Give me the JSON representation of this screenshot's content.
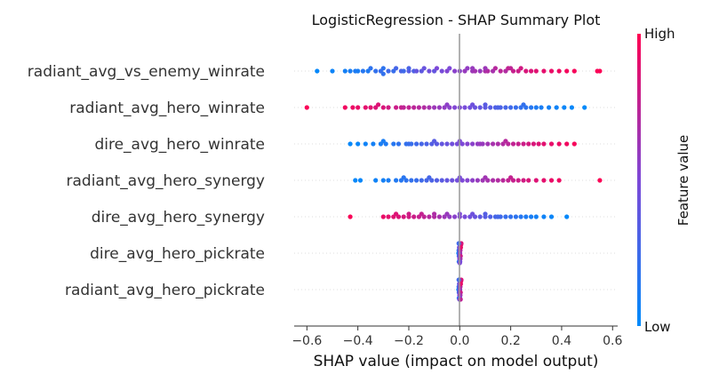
{
  "chart_data": {
    "type": "scatter",
    "title": "LogisticRegression - SHAP Summary Plot",
    "xlabel": "SHAP value (impact on model output)",
    "xlim": [
      -0.65,
      0.62
    ],
    "xticks": [
      "−0.6",
      "−0.4",
      "−0.2",
      "0.0",
      "0.2",
      "0.4",
      "0.6"
    ],
    "xtick_values": [
      -0.6,
      -0.4,
      -0.2,
      0.0,
      0.2,
      0.4,
      0.6
    ],
    "colorbar": {
      "label": "Feature value",
      "high": "High",
      "low": "Low",
      "low_color": "#008bfb",
      "high_color": "#ff0052"
    },
    "features": [
      {
        "name": "radiant_avg_vs_enemy_winrate",
        "points": [
          [
            -0.56,
            0.02
          ],
          [
            -0.5,
            0.05
          ],
          [
            -0.45,
            0.08
          ],
          [
            -0.43,
            0.1
          ],
          [
            -0.41,
            0.12
          ],
          [
            -0.4,
            0.1
          ],
          [
            -0.38,
            0.15
          ],
          [
            -0.36,
            0.12
          ],
          [
            -0.35,
            0.18
          ],
          [
            -0.33,
            0.2
          ],
          [
            -0.31,
            0.22
          ],
          [
            -0.3,
            0.18
          ],
          [
            -0.28,
            0.25
          ],
          [
            -0.26,
            0.22
          ],
          [
            -0.25,
            0.28
          ],
          [
            -0.23,
            0.3
          ],
          [
            -0.22,
            0.25
          ],
          [
            -0.2,
            0.35
          ],
          [
            -0.18,
            0.32
          ],
          [
            -0.17,
            0.4
          ],
          [
            -0.15,
            0.38
          ],
          [
            -0.14,
            0.42
          ],
          [
            -0.12,
            0.45
          ],
          [
            -0.1,
            0.4
          ],
          [
            -0.09,
            0.5
          ],
          [
            -0.07,
            0.48
          ],
          [
            -0.05,
            0.52
          ],
          [
            -0.04,
            0.5
          ],
          [
            -0.02,
            0.55
          ],
          [
            0.0,
            0.55
          ],
          [
            0.02,
            0.6
          ],
          [
            0.03,
            0.58
          ],
          [
            0.05,
            0.62
          ],
          [
            0.06,
            0.65
          ],
          [
            0.08,
            0.6
          ],
          [
            0.1,
            0.68
          ],
          [
            0.11,
            0.7
          ],
          [
            0.13,
            0.66
          ],
          [
            0.14,
            0.72
          ],
          [
            0.16,
            0.74
          ],
          [
            0.18,
            0.7
          ],
          [
            0.19,
            0.76
          ],
          [
            0.21,
            0.78
          ],
          [
            0.23,
            0.8
          ],
          [
            0.24,
            0.82
          ],
          [
            0.26,
            0.85
          ],
          [
            0.28,
            0.86
          ],
          [
            0.3,
            0.88
          ],
          [
            0.33,
            0.9
          ],
          [
            0.36,
            0.92
          ],
          [
            0.39,
            0.94
          ],
          [
            0.42,
            0.96
          ],
          [
            0.45,
            0.97
          ],
          [
            0.55,
            0.99
          ],
          [
            0.54,
            0.98
          ],
          [
            0.1,
            0.62
          ],
          [
            0.05,
            0.6
          ],
          [
            -0.2,
            0.3
          ],
          [
            -0.3,
            0.2
          ],
          [
            0.2,
            0.75
          ]
        ]
      },
      {
        "name": "radiant_avg_hero_winrate",
        "points": [
          [
            -0.6,
            0.98
          ],
          [
            -0.45,
            0.95
          ],
          [
            -0.42,
            0.93
          ],
          [
            -0.4,
            0.92
          ],
          [
            -0.37,
            0.9
          ],
          [
            -0.35,
            0.88
          ],
          [
            -0.33,
            0.86
          ],
          [
            -0.3,
            0.85
          ],
          [
            -0.28,
            0.82
          ],
          [
            -0.25,
            0.8
          ],
          [
            -0.23,
            0.78
          ],
          [
            -0.2,
            0.76
          ],
          [
            -0.18,
            0.74
          ],
          [
            -0.16,
            0.72
          ],
          [
            -0.14,
            0.7
          ],
          [
            -0.12,
            0.66
          ],
          [
            -0.1,
            0.62
          ],
          [
            -0.08,
            0.6
          ],
          [
            -0.06,
            0.58
          ],
          [
            -0.04,
            0.55
          ],
          [
            -0.02,
            0.52
          ],
          [
            0.0,
            0.5
          ],
          [
            0.02,
            0.48
          ],
          [
            0.04,
            0.45
          ],
          [
            0.06,
            0.42
          ],
          [
            0.08,
            0.4
          ],
          [
            0.1,
            0.38
          ],
          [
            0.12,
            0.35
          ],
          [
            0.14,
            0.32
          ],
          [
            0.16,
            0.3
          ],
          [
            0.18,
            0.28
          ],
          [
            0.2,
            0.25
          ],
          [
            0.22,
            0.22
          ],
          [
            0.24,
            0.2
          ],
          [
            0.26,
            0.18
          ],
          [
            0.28,
            0.15
          ],
          [
            0.3,
            0.12
          ],
          [
            0.32,
            0.1
          ],
          [
            0.35,
            0.08
          ],
          [
            0.38,
            0.06
          ],
          [
            0.41,
            0.04
          ],
          [
            0.44,
            0.03
          ],
          [
            0.49,
            0.01
          ],
          [
            -0.22,
            0.75
          ],
          [
            -0.05,
            0.56
          ],
          [
            0.05,
            0.44
          ],
          [
            0.15,
            0.3
          ],
          [
            -0.32,
            0.87
          ],
          [
            0.25,
            0.2
          ],
          [
            0.1,
            0.36
          ]
        ]
      },
      {
        "name": "dire_avg_hero_winrate",
        "points": [
          [
            -0.43,
            0.02
          ],
          [
            -0.4,
            0.04
          ],
          [
            -0.37,
            0.06
          ],
          [
            -0.34,
            0.08
          ],
          [
            -0.31,
            0.1
          ],
          [
            -0.29,
            0.12
          ],
          [
            -0.26,
            0.15
          ],
          [
            -0.24,
            0.18
          ],
          [
            -0.21,
            0.2
          ],
          [
            -0.19,
            0.22
          ],
          [
            -0.17,
            0.25
          ],
          [
            -0.15,
            0.28
          ],
          [
            -0.13,
            0.3
          ],
          [
            -0.11,
            0.33
          ],
          [
            -0.09,
            0.36
          ],
          [
            -0.07,
            0.4
          ],
          [
            -0.05,
            0.42
          ],
          [
            -0.03,
            0.45
          ],
          [
            -0.01,
            0.48
          ],
          [
            0.01,
            0.5
          ],
          [
            0.03,
            0.53
          ],
          [
            0.05,
            0.55
          ],
          [
            0.07,
            0.58
          ],
          [
            0.09,
            0.6
          ],
          [
            0.11,
            0.63
          ],
          [
            0.13,
            0.66
          ],
          [
            0.15,
            0.68
          ],
          [
            0.17,
            0.7
          ],
          [
            0.19,
            0.73
          ],
          [
            0.21,
            0.76
          ],
          [
            0.23,
            0.78
          ],
          [
            0.25,
            0.8
          ],
          [
            0.27,
            0.83
          ],
          [
            0.29,
            0.85
          ],
          [
            0.31,
            0.87
          ],
          [
            0.33,
            0.89
          ],
          [
            0.36,
            0.91
          ],
          [
            0.39,
            0.93
          ],
          [
            0.42,
            0.95
          ],
          [
            0.45,
            0.97
          ],
          [
            -0.2,
            0.22
          ],
          [
            -0.1,
            0.35
          ],
          [
            0.0,
            0.5
          ],
          [
            0.08,
            0.6
          ],
          [
            0.18,
            0.72
          ],
          [
            -0.3,
            0.1
          ]
        ]
      },
      {
        "name": "radiant_avg_hero_synergy",
        "points": [
          [
            -0.41,
            0.02
          ],
          [
            -0.39,
            0.03
          ],
          [
            -0.33,
            0.06
          ],
          [
            -0.3,
            0.08
          ],
          [
            -0.28,
            0.1
          ],
          [
            -0.25,
            0.13
          ],
          [
            -0.23,
            0.15
          ],
          [
            -0.21,
            0.18
          ],
          [
            -0.19,
            0.2
          ],
          [
            -0.17,
            0.22
          ],
          [
            -0.15,
            0.25
          ],
          [
            -0.13,
            0.28
          ],
          [
            -0.11,
            0.3
          ],
          [
            -0.09,
            0.33
          ],
          [
            -0.07,
            0.36
          ],
          [
            -0.05,
            0.4
          ],
          [
            -0.03,
            0.43
          ],
          [
            -0.01,
            0.46
          ],
          [
            0.01,
            0.5
          ],
          [
            0.03,
            0.53
          ],
          [
            0.05,
            0.56
          ],
          [
            0.07,
            0.6
          ],
          [
            0.09,
            0.63
          ],
          [
            0.11,
            0.66
          ],
          [
            0.13,
            0.68
          ],
          [
            0.15,
            0.7
          ],
          [
            0.17,
            0.73
          ],
          [
            0.19,
            0.76
          ],
          [
            0.21,
            0.78
          ],
          [
            0.23,
            0.8
          ],
          [
            0.25,
            0.82
          ],
          [
            0.27,
            0.85
          ],
          [
            0.3,
            0.87
          ],
          [
            0.33,
            0.9
          ],
          [
            0.36,
            0.92
          ],
          [
            0.39,
            0.94
          ],
          [
            0.55,
            0.99
          ],
          [
            -0.12,
            0.28
          ],
          [
            0.0,
            0.48
          ],
          [
            0.1,
            0.64
          ],
          [
            0.2,
            0.77
          ],
          [
            -0.22,
            0.16
          ]
        ]
      },
      {
        "name": "dire_avg_hero_synergy",
        "points": [
          [
            -0.43,
            0.98
          ],
          [
            -0.3,
            0.92
          ],
          [
            -0.28,
            0.9
          ],
          [
            -0.26,
            0.88
          ],
          [
            -0.24,
            0.86
          ],
          [
            -0.22,
            0.84
          ],
          [
            -0.2,
            0.82
          ],
          [
            -0.18,
            0.8
          ],
          [
            -0.16,
            0.78
          ],
          [
            -0.14,
            0.75
          ],
          [
            -0.12,
            0.72
          ],
          [
            -0.1,
            0.7
          ],
          [
            -0.08,
            0.66
          ],
          [
            -0.06,
            0.62
          ],
          [
            -0.04,
            0.58
          ],
          [
            -0.02,
            0.55
          ],
          [
            0.0,
            0.52
          ],
          [
            0.02,
            0.48
          ],
          [
            0.04,
            0.45
          ],
          [
            0.06,
            0.42
          ],
          [
            0.08,
            0.38
          ],
          [
            0.1,
            0.35
          ],
          [
            0.12,
            0.32
          ],
          [
            0.14,
            0.28
          ],
          [
            0.16,
            0.25
          ],
          [
            0.18,
            0.22
          ],
          [
            0.2,
            0.2
          ],
          [
            0.22,
            0.18
          ],
          [
            0.24,
            0.15
          ],
          [
            0.26,
            0.12
          ],
          [
            0.28,
            0.1
          ],
          [
            0.3,
            0.08
          ],
          [
            0.33,
            0.06
          ],
          [
            0.36,
            0.04
          ],
          [
            0.42,
            0.02
          ],
          [
            -0.15,
            0.77
          ],
          [
            -0.05,
            0.6
          ],
          [
            0.05,
            0.44
          ],
          [
            0.15,
            0.27
          ],
          [
            -0.25,
            0.87
          ],
          [
            0.0,
            0.5
          ],
          [
            -0.1,
            0.69
          ],
          [
            0.1,
            0.34
          ],
          [
            -0.2,
            0.81
          ]
        ]
      },
      {
        "name": "dire_avg_hero_pickrate",
        "points": [
          [
            -0.005,
            0.1
          ],
          [
            -0.004,
            0.2
          ],
          [
            -0.003,
            0.3
          ],
          [
            -0.002,
            0.4
          ],
          [
            -0.001,
            0.5
          ],
          [
            0.0,
            0.55
          ],
          [
            0.001,
            0.6
          ],
          [
            0.002,
            0.7
          ],
          [
            0.003,
            0.8
          ],
          [
            0.004,
            0.9
          ],
          [
            -0.003,
            0.15
          ],
          [
            0.002,
            0.65
          ],
          [
            0.005,
            0.95
          ],
          [
            -0.002,
            0.35
          ],
          [
            0.001,
            0.45
          ],
          [
            0.0,
            0.5
          ],
          [
            0.006,
            0.85
          ],
          [
            -0.004,
            0.25
          ]
        ]
      },
      {
        "name": "radiant_avg_hero_pickrate",
        "points": [
          [
            -0.005,
            0.1
          ],
          [
            -0.004,
            0.2
          ],
          [
            -0.003,
            0.3
          ],
          [
            -0.002,
            0.4
          ],
          [
            -0.001,
            0.5
          ],
          [
            0.0,
            0.55
          ],
          [
            0.001,
            0.6
          ],
          [
            0.002,
            0.7
          ],
          [
            0.003,
            0.8
          ],
          [
            0.004,
            0.9
          ],
          [
            -0.003,
            0.15
          ],
          [
            0.002,
            0.65
          ],
          [
            0.005,
            0.95
          ],
          [
            -0.002,
            0.35
          ],
          [
            0.001,
            0.45
          ],
          [
            0.0,
            0.5
          ],
          [
            0.006,
            0.85
          ],
          [
            -0.004,
            0.25
          ],
          [
            -0.001,
            0.45
          ],
          [
            0.003,
            0.75
          ]
        ]
      }
    ]
  }
}
